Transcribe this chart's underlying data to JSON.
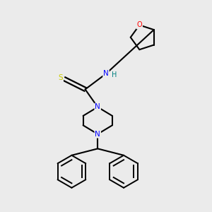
{
  "background_color": "#ebebeb",
  "atom_colors": {
    "N": "#0000ff",
    "O": "#ff0000",
    "S": "#cccc00",
    "C": "#000000",
    "H": "#008080"
  },
  "figsize": [
    3.0,
    3.0
  ],
  "dpi": 100
}
